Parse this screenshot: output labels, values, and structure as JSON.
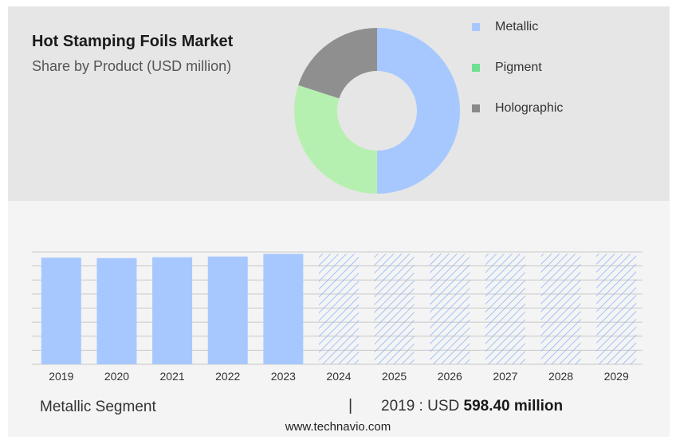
{
  "header": {
    "title": "Hot Stamping Foils Market",
    "subtitle": "Share by Product (USD million)"
  },
  "donut": {
    "type": "pie",
    "segments": [
      {
        "label": "Metallic",
        "share": 50,
        "color": "#a7c8ff"
      },
      {
        "label": "Pigment",
        "share": 30,
        "color": "#b6f0b0"
      },
      {
        "label": "Holographic",
        "share": 20,
        "color": "#8f8f8f"
      }
    ]
  },
  "legend": {
    "items": [
      {
        "label": "Metallic",
        "color": "#a7c8ff"
      },
      {
        "label": "Pigment",
        "color": "#6fe08f"
      },
      {
        "label": "Holographic",
        "color": "#8a8a8a"
      }
    ]
  },
  "chart_data": {
    "type": "bar",
    "categories": [
      "2019",
      "2020",
      "2021",
      "2022",
      "2023",
      "2024",
      "2025",
      "2026",
      "2027",
      "2028",
      "2029"
    ],
    "values": [
      598.4,
      596,
      601,
      605,
      620,
      620,
      620,
      620,
      620,
      620,
      620
    ],
    "forecast_start_index": 5,
    "title": "",
    "xlabel": "",
    "ylabel": "",
    "ylim": [
      0,
      640
    ],
    "grid": true,
    "colors": {
      "actual": "#a7c8ff",
      "forecast_stripe": "#8fb6f5"
    }
  },
  "footer": {
    "segment_label": "Metallic Segment",
    "separator": "|",
    "year_text": "2019 : USD",
    "value_text": "598.40 million",
    "source": "www.technavio.com"
  }
}
